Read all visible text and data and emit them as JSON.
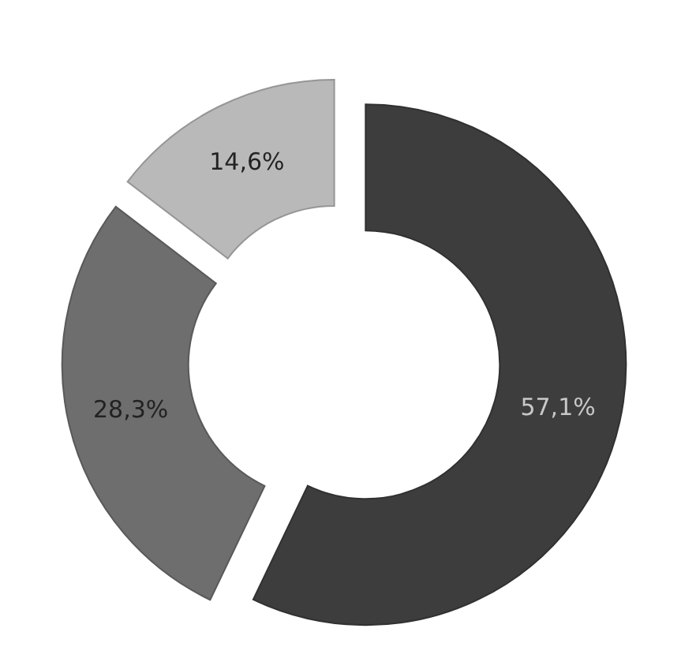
{
  "chart_data": {
    "type": "donut",
    "categories": [
      null,
      null,
      null
    ],
    "values": [
      57.1,
      28.3,
      14.6
    ],
    "colors": [
      "#3d3d3d",
      "#6e6e6e",
      "#b9b9b9"
    ],
    "value_labels": [
      "57,1%",
      "28,3%",
      "14,6%"
    ]
  }
}
